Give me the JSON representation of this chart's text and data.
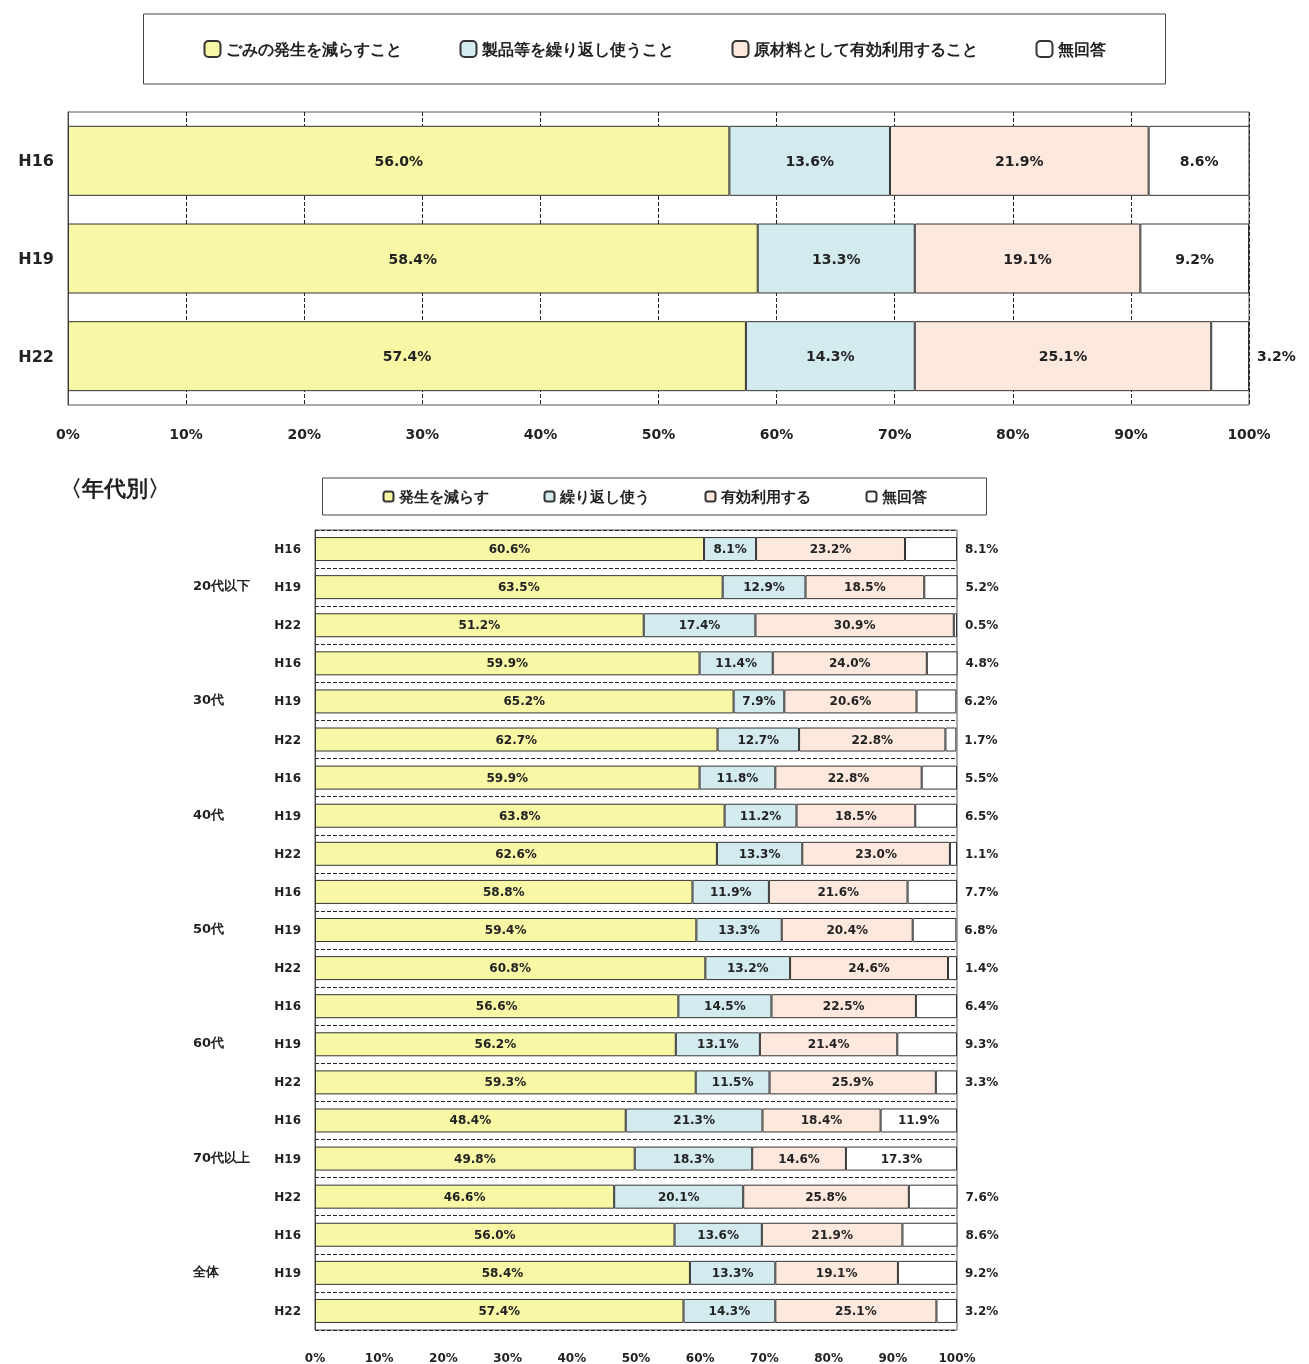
{
  "chart_data": [
    {
      "type": "bar",
      "orientation": "horizontal",
      "stacked": true,
      "legend": "top",
      "grid": "x",
      "categories": [
        "H16",
        "H19",
        "H22"
      ],
      "xlim": [
        0,
        100
      ],
      "xticks": [
        {
          "value": 0,
          "label": "0%"
        },
        {
          "value": 10,
          "label": "10%"
        },
        {
          "value": 20,
          "label": "20%"
        },
        {
          "value": 30,
          "label": "30%"
        },
        {
          "value": 40,
          "label": "40%"
        },
        {
          "value": 50,
          "label": "50%"
        },
        {
          "value": 60,
          "label": "60%"
        },
        {
          "value": 70,
          "label": "70%"
        },
        {
          "value": 80,
          "label": "80%"
        },
        {
          "value": 90,
          "label": "90%"
        },
        {
          "value": 100,
          "label": "100%"
        }
      ],
      "series": [
        {
          "name": "ごみの発生を減らすこと",
          "color": "#f7f7a6",
          "values": [
            56.0,
            58.4,
            57.4
          ],
          "value_labels": [
            "56.0%",
            "58.4%",
            "57.4%"
          ]
        },
        {
          "name": "製品等を繰り返し使うこと",
          "color": "#d3ebef",
          "values": [
            13.6,
            13.3,
            14.3
          ],
          "value_labels": [
            "13.6%",
            "13.3%",
            "14.3%"
          ]
        },
        {
          "name": "原材料として有効利用すること",
          "color": "#fce8dc",
          "values": [
            21.9,
            19.1,
            25.1
          ],
          "value_labels": [
            "21.9%",
            "19.1%",
            "25.1%"
          ]
        },
        {
          "name": "無回答",
          "color": "#ffffff",
          "values": [
            8.6,
            9.2,
            3.2
          ],
          "value_labels": [
            "8.6%",
            "9.2%",
            "3.2%"
          ]
        }
      ]
    },
    {
      "type": "bar",
      "orientation": "horizontal",
      "stacked": true,
      "legend": "top",
      "grid": "y",
      "title": "〈年代別〉",
      "categories": [
        "H16",
        "H19",
        "H22",
        "H16",
        "H19",
        "H22",
        "H16",
        "H19",
        "H22",
        "H16",
        "H19",
        "H22",
        "H16",
        "H19",
        "H22",
        "H16",
        "H19",
        "H22",
        "H16",
        "H19",
        "H22"
      ],
      "annotations": [
        "20代以下",
        "30代",
        "40代",
        "50代",
        "60代",
        "70代以上",
        "全体"
      ],
      "xlim": [
        0,
        100
      ],
      "xticks": [
        {
          "value": 0,
          "label": "0%"
        },
        {
          "value": 10,
          "label": "10%"
        },
        {
          "value": 20,
          "label": "20%"
        },
        {
          "value": 30,
          "label": "30%"
        },
        {
          "value": 40,
          "label": "40%"
        },
        {
          "value": 50,
          "label": "50%"
        },
        {
          "value": 60,
          "label": "60%"
        },
        {
          "value": 70,
          "label": "70%"
        },
        {
          "value": 80,
          "label": "80%"
        },
        {
          "value": 90,
          "label": "90%"
        },
        {
          "value": 100,
          "label": "100%"
        }
      ],
      "series": [
        {
          "name": "発生を減らす",
          "color": "#f7f7a6",
          "values": [
            60.6,
            63.5,
            51.2,
            59.9,
            65.2,
            62.7,
            59.9,
            63.8,
            62.6,
            58.8,
            59.4,
            60.8,
            56.6,
            56.2,
            59.3,
            48.4,
            49.8,
            46.6,
            56.0,
            58.4,
            57.4
          ],
          "value_labels": [
            "60.6%",
            "63.5%",
            "51.2%",
            "59.9%",
            "65.2%",
            "62.7%",
            "59.9%",
            "63.8%",
            "62.6%",
            "58.8%",
            "59.4%",
            "60.8%",
            "56.6%",
            "56.2%",
            "59.3%",
            "48.4%",
            "49.8%",
            "46.6%",
            "56.0%",
            "58.4%",
            "57.4%"
          ]
        },
        {
          "name": "繰り返し使う",
          "color": "#d3ebef",
          "values": [
            8.1,
            12.9,
            17.4,
            11.4,
            7.9,
            12.7,
            11.8,
            11.2,
            13.3,
            11.9,
            13.3,
            13.2,
            14.5,
            13.1,
            11.5,
            21.3,
            18.3,
            20.1,
            13.6,
            13.3,
            14.3
          ],
          "value_labels": [
            "8.1%",
            "12.9%",
            "17.4%",
            "11.4%",
            "7.9%",
            "12.7%",
            "11.8%",
            "11.2%",
            "13.3%",
            "11.9%",
            "13.3%",
            "13.2%",
            "14.5%",
            "13.1%",
            "11.5%",
            "21.3%",
            "18.3%",
            "20.1%",
            "13.6%",
            "13.3%",
            "14.3%"
          ]
        },
        {
          "name": "有効利用する",
          "color": "#fce8dc",
          "values": [
            23.2,
            18.5,
            30.9,
            24.0,
            20.6,
            22.8,
            22.8,
            18.5,
            23.0,
            21.6,
            20.4,
            24.6,
            22.5,
            21.4,
            25.9,
            18.4,
            14.6,
            25.8,
            21.9,
            19.1,
            25.1
          ],
          "value_labels": [
            "23.2%",
            "18.5%",
            "30.9%",
            "24.0%",
            "20.6%",
            "22.8%",
            "22.8%",
            "18.5%",
            "23.0%",
            "21.6%",
            "20.4%",
            "24.6%",
            "22.5%",
            "21.4%",
            "25.9%",
            "18.4%",
            "14.6%",
            "25.8%",
            "21.9%",
            "19.1%",
            "25.1%"
          ]
        },
        {
          "name": "無回答",
          "color": "#ffffff",
          "values": [
            8.1,
            5.2,
            0.5,
            4.8,
            6.2,
            1.7,
            5.5,
            6.5,
            1.1,
            7.7,
            6.8,
            1.4,
            6.4,
            9.3,
            3.3,
            11.9,
            17.3,
            7.6,
            8.6,
            9.2,
            3.2
          ],
          "value_labels": [
            "8.1%",
            "5.2%",
            "0.5%",
            "4.8%",
            "6.2%",
            "1.7%",
            "5.5%",
            "6.5%",
            "1.1%",
            "7.7%",
            "6.8%",
            "1.4%",
            "6.4%",
            "9.3%",
            "3.3%",
            "11.9%",
            "17.3%",
            "7.6%",
            "8.6%",
            "9.2%",
            "3.2%"
          ]
        }
      ]
    }
  ]
}
